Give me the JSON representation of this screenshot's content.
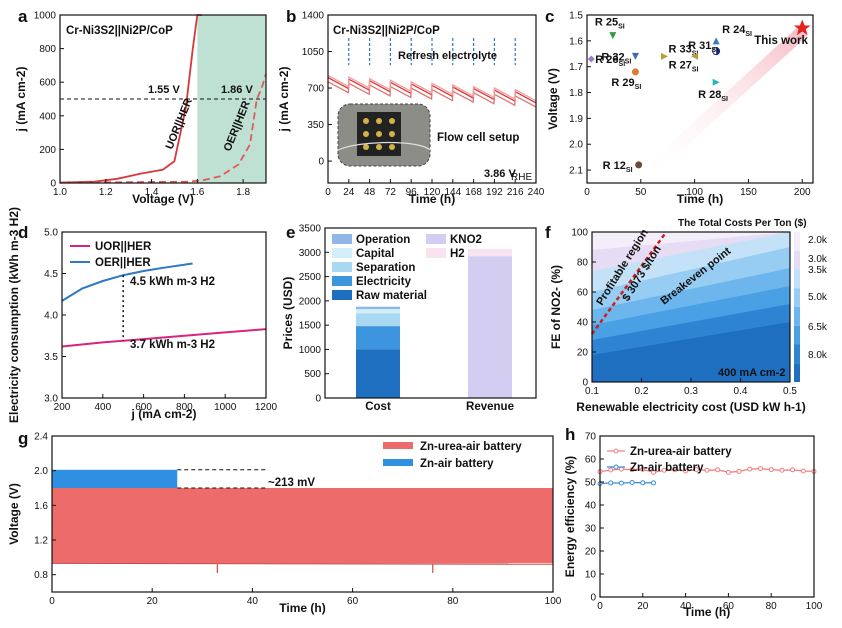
{
  "chart_data": [
    {
      "panel": "a",
      "type": "line",
      "title": "Cr-Ni3S2||Ni2P/CoP",
      "xlabel": "Voltage (V)",
      "ylabel": "j (mA cm-2)",
      "xlim": [
        1.0,
        1.9
      ],
      "ylim": [
        0,
        1000
      ],
      "xticks": [
        "1.0",
        "1.2",
        "1.4",
        "1.6",
        "1.8"
      ],
      "yticks": [
        "0",
        "200",
        "400",
        "600",
        "800",
        "1000"
      ],
      "series": [
        {
          "name": "UOR||HER",
          "x": [
            1.0,
            1.15,
            1.25,
            1.35,
            1.45,
            1.5,
            1.55,
            1.58,
            1.6,
            1.62
          ],
          "y": [
            3,
            8,
            25,
            55,
            80,
            130,
            450,
            800,
            1000,
            1000
          ]
        },
        {
          "name": "OER||HER",
          "x": [
            1.0,
            1.3,
            1.55,
            1.62,
            1.7,
            1.78,
            1.83,
            1.86,
            1.88,
            1.9
          ],
          "y": [
            2,
            5,
            8,
            15,
            40,
            110,
            230,
            500,
            560,
            650
          ]
        }
      ],
      "annotations": [
        "1.55 V",
        "1.86 V",
        "UOR||HER",
        "OER||HER"
      ],
      "reference_line_y": 500
    },
    {
      "panel": "b",
      "type": "line",
      "title": "Cr-Ni3S2||Ni2P/CoP",
      "xlabel": "Time (h)",
      "ylabel": "j (mA cm-2)",
      "xlim": [
        0,
        240
      ],
      "ylim": [
        -210,
        1400
      ],
      "xticks": [
        "0",
        "24",
        "48",
        "72",
        "96",
        "120",
        "144",
        "168",
        "192",
        "216",
        "240"
      ],
      "yticks": [
        "0",
        "350",
        "700",
        "1050",
        "1400"
      ],
      "refresh_times": [
        24,
        48,
        72,
        96,
        120,
        144,
        168,
        192,
        216
      ],
      "trend": {
        "x": [
          0,
          240
        ],
        "y": [
          760,
          610
        ]
      },
      "annotations": [
        "Refresh electrolyte",
        "Flow cell setup",
        "3.86 V",
        "RHE"
      ]
    },
    {
      "panel": "c",
      "type": "scatter",
      "xlabel": "Time (h)",
      "ylabel": "Voltage (V)",
      "xlim": [
        0,
        210
      ],
      "ylim": [
        1.5,
        2.15
      ],
      "xticks": [
        "0",
        "50",
        "100",
        "150",
        "200"
      ],
      "yticks": [
        "1.5",
        "1.6",
        "1.7",
        "1.8",
        "1.9",
        "2.0",
        "2.1"
      ],
      "points": [
        {
          "label": "R 25",
          "sub": "SI",
          "x": 24,
          "y": 1.58,
          "color": "#2e9b4a",
          "marker": "tri-down"
        },
        {
          "label": "R 32",
          "sub": "SI",
          "x": 45,
          "y": 1.66,
          "color": "#4169b0",
          "marker": "tri-down"
        },
        {
          "label": "R 26",
          "sub": "SI",
          "x": 4,
          "y": 1.67,
          "color": "#9b7bc9",
          "marker": "diamond"
        },
        {
          "label": "R 33",
          "sub": "SI",
          "x": 72,
          "y": 1.66,
          "color": "#b4a032",
          "marker": "tri-right"
        },
        {
          "label": "R 29",
          "sub": "SI",
          "x": 45,
          "y": 1.72,
          "color": "#e07a30",
          "marker": "circle"
        },
        {
          "label": "R 31",
          "sub": "SI",
          "x": 120,
          "y": 1.64,
          "color": "#1c2c80",
          "marker": "half-circle"
        },
        {
          "label": "R 24",
          "sub": "SI",
          "x": 120,
          "y": 1.6,
          "color": "#3b78c2",
          "marker": "tri-up"
        },
        {
          "label": "R 27",
          "sub": "SI",
          "x": 100,
          "y": 1.66,
          "color": "#b4a032",
          "marker": "tri-left"
        },
        {
          "label": "R 28",
          "sub": "SI",
          "x": 120,
          "y": 1.76,
          "color": "#2ab6b4",
          "marker": "tri-right"
        },
        {
          "label": "R 12",
          "sub": "SI",
          "x": 48,
          "y": 2.08,
          "color": "#6b4a3a",
          "marker": "circle"
        },
        {
          "label": "This work",
          "sub": "",
          "x": 200,
          "y": 1.55,
          "color": "#e3231c",
          "marker": "star"
        }
      ]
    },
    {
      "panel": "d",
      "type": "line",
      "xlabel": "j (mA cm-2)",
      "ylabel": "Electricity consumption (kWh m-3 H2)",
      "xlim": [
        200,
        1200
      ],
      "ylim": [
        3.0,
        5.0
      ],
      "xticks": [
        "200",
        "400",
        "600",
        "800",
        "1000",
        "1200"
      ],
      "yticks": [
        "3.0",
        "3.5",
        "4.0",
        "4.5",
        "5.0"
      ],
      "series": [
        {
          "name": "UOR||HER",
          "color": "#d9237f",
          "x": [
            200,
            400,
            600,
            800,
            1000,
            1200
          ],
          "y": [
            3.62,
            3.67,
            3.71,
            3.75,
            3.79,
            3.83
          ]
        },
        {
          "name": "OER||HER",
          "color": "#2f78c2",
          "x": [
            200,
            300,
            400,
            500,
            600,
            700,
            840
          ],
          "y": [
            4.17,
            4.32,
            4.41,
            4.48,
            4.53,
            4.57,
            4.62
          ]
        }
      ],
      "annotations": [
        "4.5 kWh m-3 H2",
        "3.7 kWh m-3 H2"
      ],
      "marker_x": 500
    },
    {
      "panel": "e",
      "type": "bar",
      "xlabel": "",
      "ylabel": "Prices (USD)",
      "categories": [
        "Cost",
        "Revenue"
      ],
      "ylim": [
        0,
        3500
      ],
      "yticks": [
        "0",
        "500",
        "1000",
        "1500",
        "2000",
        "2500",
        "3000",
        "3500"
      ],
      "stacks": [
        {
          "category": "Cost",
          "segments": [
            {
              "name": "Raw material",
              "value": 1000,
              "color": "#1f6fc0"
            },
            {
              "name": "Electricity",
              "value": 480,
              "color": "#3d95de"
            },
            {
              "name": "Separation",
              "value": 260,
              "color": "#a9d8f2"
            },
            {
              "name": "Capital",
              "value": 90,
              "color": "#d2eef8"
            },
            {
              "name": "Operation",
              "value": 50,
              "color": "#8fb8e8"
            }
          ]
        },
        {
          "category": "Revenue",
          "segments": [
            {
              "name": "KNO2",
              "value": 2920,
              "color": "#d3cdf2"
            },
            {
              "name": "H2",
              "value": 150,
              "color": "#f7e4f0"
            }
          ]
        }
      ],
      "legend": [
        "Operation",
        "Capital",
        "Separation",
        "Electricity",
        "Raw material",
        "KNO2",
        "H2"
      ]
    },
    {
      "panel": "f",
      "type": "heatmap",
      "xlabel": "Renewable electricity cost (USD kW h-1)",
      "ylabel": "FE of NO2- (%)",
      "xlim": [
        0.1,
        0.5
      ],
      "ylim": [
        0,
        100
      ],
      "xticks": [
        "0.1",
        "0.2",
        "0.3",
        "0.4",
        "0.5"
      ],
      "yticks": [
        "0",
        "20",
        "40",
        "60",
        "80",
        "100"
      ],
      "colorbar_title": "The Total Costs Per Ton ($)",
      "colorbar_ticks": [
        "2.0k",
        "3.0k",
        "3.5k",
        "5.0k",
        "6.5k",
        "8.0k"
      ],
      "annotations": [
        "Profitable region",
        "$ 3073 $/ton",
        "Breakeven point",
        "400 mA cm-2"
      ],
      "breakeven_line": {
        "x": [
          0.1,
          0.25
        ],
        "y": [
          32,
          100
        ]
      }
    },
    {
      "panel": "g",
      "type": "area",
      "xlabel": "Time (h)",
      "ylabel": "Voltage (V)",
      "xlim": [
        0,
        100
      ],
      "ylim": [
        0.6,
        2.4
      ],
      "xticks": [
        "0",
        "20",
        "40",
        "60",
        "80",
        "100"
      ],
      "yticks": [
        "0.8",
        "1.2",
        "1.6",
        "2.0",
        "2.4"
      ],
      "series": [
        {
          "name": "Zn-urea-air battery",
          "color": "#ee6b6b",
          "x": [
            0,
            100
          ],
          "upper": [
            1.8,
            1.8
          ],
          "lower": [
            0.93,
            0.92
          ]
        },
        {
          "name": "Zn-air battery",
          "color": "#2f8fe0",
          "x": [
            0,
            25
          ],
          "upper": [
            2.01,
            2.01
          ],
          "lower": [
            1.8,
            1.8
          ]
        }
      ],
      "annotations": [
        "~213 mV"
      ]
    },
    {
      "panel": "h",
      "type": "line",
      "xlabel": "Time (h)",
      "ylabel": "Energy efficiency (%)",
      "xlim": [
        0,
        100
      ],
      "ylim": [
        0,
        70
      ],
      "xticks": [
        "0",
        "20",
        "40",
        "60",
        "80",
        "100"
      ],
      "yticks": [
        "0",
        "10",
        "20",
        "30",
        "40",
        "50",
        "60",
        "70"
      ],
      "series": [
        {
          "name": "Zn-urea-air battery",
          "color": "#ef7f7f",
          "x": [
            0,
            5,
            10,
            15,
            20,
            25,
            30,
            35,
            40,
            45,
            50,
            55,
            60,
            65,
            70,
            75,
            80,
            85,
            90,
            95,
            100
          ],
          "y": [
            54.5,
            55.2,
            55.6,
            55.4,
            55.5,
            54.2,
            55.1,
            55.3,
            54.8,
            55.4,
            55.1,
            55.3,
            54.2,
            54.6,
            55.6,
            55.8,
            55.4,
            55.1,
            55.3,
            54.8,
            54.6
          ]
        },
        {
          "name": "Zn-air battery",
          "color": "#3b8ed4",
          "x": [
            0,
            5,
            10,
            15,
            20,
            25
          ],
          "y": [
            49.3,
            49.6,
            49.5,
            49.8,
            49.7,
            49.6
          ]
        }
      ]
    }
  ]
}
